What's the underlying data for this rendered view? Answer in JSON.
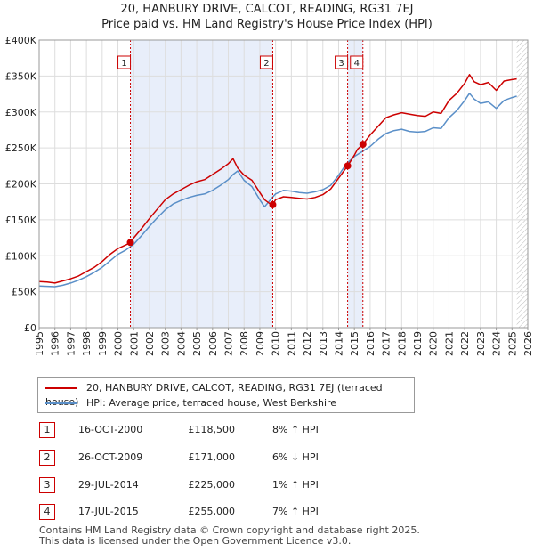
{
  "title_line1": "20, HANBURY DRIVE, CALCOT, READING, RG31 7EJ",
  "title_line2": "Price paid vs. HM Land Registry's House Price Index (HPI)",
  "chart_data": {
    "type": "line",
    "title": "20, HANBURY DRIVE, CALCOT, READING, RG31 7EJ — Price paid vs. HM Land Registry's House Price Index (HPI)",
    "xlabel": "",
    "ylabel": "",
    "xlim": [
      1995,
      2026
    ],
    "ylim": [
      0,
      400000
    ],
    "x_ticks": [
      1995,
      1996,
      1997,
      1998,
      1999,
      2000,
      2001,
      2002,
      2003,
      2004,
      2005,
      2006,
      2007,
      2008,
      2009,
      2010,
      2011,
      2012,
      2013,
      2014,
      2015,
      2016,
      2017,
      2018,
      2019,
      2020,
      2021,
      2022,
      2023,
      2024,
      2025,
      2026
    ],
    "y_ticks": [
      0,
      50000,
      100000,
      150000,
      200000,
      250000,
      300000,
      350000,
      400000
    ],
    "y_tick_labels": [
      "£0",
      "£50K",
      "£100K",
      "£150K",
      "£200K",
      "£250K",
      "£300K",
      "£350K",
      "£400K"
    ],
    "grid": true,
    "shaded_ranges": [
      [
        2000.79,
        2009.82
      ],
      [
        2014.57,
        2015.54
      ]
    ],
    "future_hatch_from": 2025.3,
    "series": [
      {
        "name": "20, HANBURY DRIVE, CALCOT, READING, RG31 7EJ (terraced house)",
        "color": "#cc0000",
        "x": [
          1995,
          1995.5,
          1996,
          1996.5,
          1997,
          1997.5,
          1998,
          1998.5,
          1999,
          1999.5,
          2000,
          2000.5,
          2000.79,
          2001,
          2001.5,
          2002,
          2002.5,
          2003,
          2003.5,
          2004,
          2004.5,
          2005,
          2005.5,
          2006,
          2006.5,
          2007,
          2007.3,
          2007.6,
          2008,
          2008.5,
          2009,
          2009.3,
          2009.6,
          2009.82,
          2010,
          2010.5,
          2011,
          2011.5,
          2012,
          2012.5,
          2013,
          2013.5,
          2014,
          2014.57,
          2014.8,
          2015,
          2015.2,
          2015.54,
          2016,
          2016.5,
          2017,
          2017.5,
          2018,
          2018.5,
          2019,
          2019.5,
          2020,
          2020.5,
          2021,
          2021.5,
          2022,
          2022.3,
          2022.6,
          2023,
          2023.5,
          2024,
          2024.5,
          2025,
          2025.3
        ],
        "values": [
          64000,
          63500,
          62000,
          65000,
          68000,
          72000,
          78000,
          84000,
          92000,
          102000,
          110000,
          115000,
          118500,
          125000,
          138000,
          152000,
          165000,
          178000,
          186000,
          192000,
          198000,
          203000,
          206000,
          213000,
          220000,
          228000,
          235000,
          222000,
          212000,
          205000,
          188000,
          178000,
          173000,
          171000,
          178000,
          182000,
          181000,
          180000,
          179000,
          181000,
          185000,
          193000,
          208000,
          225000,
          233000,
          240000,
          248000,
          255000,
          268000,
          280000,
          292000,
          296000,
          299000,
          297000,
          295000,
          294000,
          300000,
          298000,
          316000,
          326000,
          340000,
          352000,
          342000,
          338000,
          341000,
          330000,
          343000,
          345000,
          346000
        ]
      },
      {
        "name": "HPI: Average price, terraced house, West Berkshire",
        "color": "#5a8fc8",
        "x": [
          1995,
          1995.5,
          1996,
          1996.5,
          1997,
          1997.5,
          1998,
          1998.5,
          1999,
          1999.5,
          2000,
          2000.5,
          2001,
          2001.5,
          2002,
          2002.5,
          2003,
          2003.5,
          2004,
          2004.5,
          2005,
          2005.5,
          2006,
          2006.5,
          2007,
          2007.3,
          2007.6,
          2008,
          2008.5,
          2009,
          2009.3,
          2009.6,
          2010,
          2010.5,
          2011,
          2011.5,
          2012,
          2012.5,
          2013,
          2013.5,
          2014,
          2014.5,
          2015,
          2015.5,
          2016,
          2016.5,
          2017,
          2017.5,
          2018,
          2018.5,
          2019,
          2019.5,
          2020,
          2020.5,
          2021,
          2021.5,
          2022,
          2022.3,
          2022.6,
          2023,
          2023.5,
          2024,
          2024.5,
          2025,
          2025.3
        ],
        "values": [
          58000,
          57500,
          57000,
          59000,
          62000,
          66000,
          71000,
          77000,
          84000,
          93000,
          102000,
          108000,
          116000,
          128000,
          141000,
          153000,
          164000,
          172000,
          177000,
          181000,
          184000,
          186000,
          191000,
          198000,
          206000,
          213000,
          218000,
          205000,
          196000,
          178000,
          168000,
          176000,
          186000,
          191000,
          190000,
          188000,
          187000,
          189000,
          192000,
          198000,
          212000,
          228000,
          238000,
          245000,
          252000,
          262000,
          270000,
          274000,
          276000,
          273000,
          272000,
          273000,
          278000,
          277000,
          292000,
          302000,
          316000,
          326000,
          318000,
          312000,
          314000,
          305000,
          316000,
          320000,
          322000
        ]
      }
    ],
    "markers": [
      {
        "label": "1",
        "x": 2000.79,
        "value": 118500
      },
      {
        "label": "2",
        "x": 2009.82,
        "value": 171000
      },
      {
        "label": "3",
        "x": 2014.57,
        "value": 225000
      },
      {
        "label": "4",
        "x": 2015.54,
        "value": 255000
      }
    ]
  },
  "legend": {
    "price_label": "20, HANBURY DRIVE, CALCOT, READING, RG31 7EJ (terraced house)",
    "hpi_label": "HPI: Average price, terraced house, West Berkshire"
  },
  "transactions": [
    {
      "num": "1",
      "date": "16-OCT-2000",
      "price": "£118,500",
      "hpi": "8% ↑ HPI"
    },
    {
      "num": "2",
      "date": "26-OCT-2009",
      "price": "£171,000",
      "hpi": "6% ↓ HPI"
    },
    {
      "num": "3",
      "date": "29-JUL-2014",
      "price": "£225,000",
      "hpi": "1% ↑ HPI"
    },
    {
      "num": "4",
      "date": "17-JUL-2015",
      "price": "£255,000",
      "hpi": "7% ↑ HPI"
    }
  ],
  "footer": {
    "line1": "Contains HM Land Registry data © Crown copyright and database right 2025.",
    "line2": "This data is licensed under the Open Government Licence v3.0."
  },
  "colors": {
    "price": "#cc0000",
    "hpi": "#5a8fc8",
    "shade": "#e8eefa",
    "grid": "#dddddd"
  }
}
